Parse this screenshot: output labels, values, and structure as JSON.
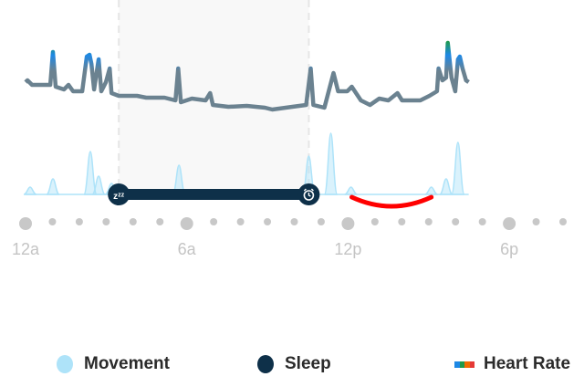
{
  "chart_data": {
    "type": "line",
    "x_unit": "hour of day",
    "x_ticks": [
      {
        "hour": 0,
        "label": "12a"
      },
      {
        "hour": 6,
        "label": "6a"
      },
      {
        "hour": 12,
        "label": "12p"
      },
      {
        "hour": 18,
        "label": "6p"
      }
    ],
    "x_range": [
      0,
      20
    ],
    "hour_markers": [
      0,
      1,
      2,
      3,
      4,
      5,
      6,
      7,
      8,
      9,
      10,
      11,
      12,
      13,
      14,
      15,
      16,
      17,
      18,
      19,
      20
    ],
    "sleep": {
      "start_hour": 3.47,
      "end_hour": 10.54,
      "start_icon": "zzz-icon",
      "end_icon": "alarm-clock-icon"
    },
    "heart_rate_relative": [
      [
        0,
        40
      ],
      [
        0.07,
        42
      ],
      [
        0.24,
        37
      ],
      [
        0.58,
        37
      ],
      [
        0.92,
        37
      ],
      [
        1.02,
        73
      ],
      [
        1.12,
        35
      ],
      [
        1.43,
        32
      ],
      [
        1.6,
        37
      ],
      [
        1.77,
        30
      ],
      [
        2.11,
        30
      ],
      [
        2.28,
        68
      ],
      [
        2.38,
        70
      ],
      [
        2.45,
        60
      ],
      [
        2.55,
        32
      ],
      [
        2.72,
        65
      ],
      [
        2.82,
        30
      ],
      [
        2.99,
        40
      ],
      [
        3.13,
        55
      ],
      [
        3.2,
        28
      ],
      [
        3.47,
        25
      ],
      [
        4.15,
        25
      ],
      [
        4.49,
        23
      ],
      [
        5.17,
        23
      ],
      [
        5.58,
        20
      ],
      [
        5.68,
        55
      ],
      [
        5.78,
        18
      ],
      [
        6.19,
        22
      ],
      [
        6.7,
        20
      ],
      [
        6.87,
        28
      ],
      [
        6.97,
        15
      ],
      [
        7.55,
        13
      ],
      [
        8.23,
        14
      ],
      [
        8.91,
        12
      ],
      [
        9.18,
        10
      ],
      [
        9.93,
        13
      ],
      [
        10.44,
        15
      ],
      [
        10.61,
        55
      ],
      [
        10.71,
        15
      ],
      [
        11.12,
        12
      ],
      [
        11.46,
        50
      ],
      [
        11.63,
        30
      ],
      [
        11.97,
        30
      ],
      [
        12.14,
        35
      ],
      [
        12.48,
        20
      ],
      [
        12.82,
        15
      ],
      [
        13.16,
        22
      ],
      [
        13.5,
        20
      ],
      [
        13.84,
        28
      ],
      [
        14.01,
        20
      ],
      [
        14.69,
        20
      ],
      [
        15.03,
        25
      ],
      [
        15.31,
        30
      ],
      [
        15.37,
        55
      ],
      [
        15.51,
        42
      ],
      [
        15.65,
        45
      ],
      [
        15.71,
        83
      ],
      [
        15.85,
        45
      ],
      [
        15.99,
        30
      ],
      [
        16.09,
        65
      ],
      [
        16.16,
        68
      ],
      [
        16.26,
        55
      ],
      [
        16.39,
        42
      ],
      [
        16.49,
        40
      ]
    ],
    "movement_relative": [
      [
        0.17,
        8
      ],
      [
        1.02,
        17
      ],
      [
        2.41,
        47
      ],
      [
        2.72,
        20
      ],
      [
        3.2,
        12
      ],
      [
        5.71,
        32
      ],
      [
        6.87,
        3
      ],
      [
        8.06,
        3
      ],
      [
        9.18,
        3
      ],
      [
        10.54,
        42
      ],
      [
        11.36,
        67
      ],
      [
        12.11,
        8
      ],
      [
        15.1,
        8
      ],
      [
        15.65,
        17
      ],
      [
        16.09,
        57
      ]
    ],
    "activity_hours": [
      12.14,
      15.1
    ],
    "colors": {
      "movement": "#aee3f9",
      "sleep": "#0e3049",
      "heart_rate_base": "#6b8290",
      "heart_rate_gradient": [
        "#1e88e5",
        "#1e9a4a",
        "#ef6c00",
        "#e53935"
      ],
      "activity": "#ff0000",
      "tick_label": "#c4c4c4",
      "sleep_shade": "#f8f8f8"
    },
    "legend": [
      {
        "label": "Movement"
      },
      {
        "label": "Sleep"
      },
      {
        "label": "Heart Rate"
      }
    ]
  }
}
